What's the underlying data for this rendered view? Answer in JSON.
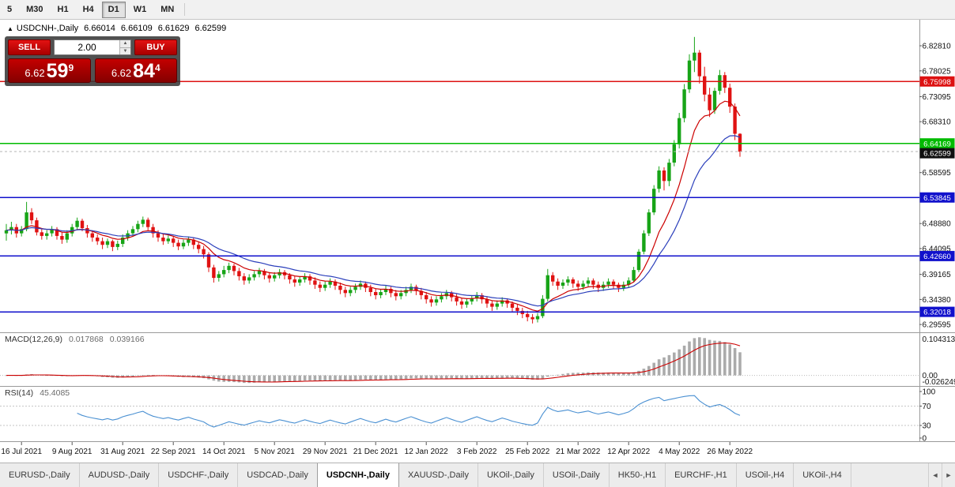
{
  "icons": {
    "symbol_arrow": "▲",
    "volume_up": "▲",
    "volume_down": "▼",
    "tab_scroll_left": "◄",
    "tab_scroll_right": "►"
  },
  "toolbar": {
    "buttons": [
      "5",
      "M30",
      "H1",
      "H4",
      "D1",
      "W1",
      "MN"
    ],
    "active": "D1"
  },
  "chart_header": {
    "symbol": "USDCNH-,Daily",
    "open": "6.66014",
    "high": "6.66109",
    "low": "6.61629",
    "close": "6.62599"
  },
  "trade_panel": {
    "sell_label": "SELL",
    "buy_label": "BUY",
    "volume": "2.00",
    "bid": {
      "prefix": "6.62",
      "big": "59",
      "sup": "9"
    },
    "ask": {
      "prefix": "6.62",
      "big": "84",
      "sup": "4"
    }
  },
  "tabs": {
    "items": [
      "EURUSD-,Daily",
      "AUDUSD-,Daily",
      "USDCHF-,Daily",
      "USDCAD-,Daily",
      "USDCNH-,Daily",
      "XAUUSD-,Daily",
      "UKOil-,Daily",
      "USOil-,Daily",
      "HK50-,H1",
      "EURCHF-,H1",
      "USOil-,H4",
      "UKOil-,H4"
    ],
    "active": "USDCNH-,Daily"
  },
  "chart_data": {
    "type": "candlestick",
    "symbol": "USDCNH-",
    "timeframe": "Daily",
    "price_axis": {
      "p_top": 6.8703,
      "p_bottom": 6.2811
    },
    "y_ticks": [
      "6.82810",
      "6.78025",
      "6.73095",
      "6.68310",
      "6.58595",
      "6.48880",
      "6.44095",
      "6.39165",
      "6.34380",
      "6.29595"
    ],
    "hlines": [
      {
        "price": 6.75998,
        "label": "6.75998",
        "color": "#dd1111"
      },
      {
        "price": 6.64169,
        "label": "6.64169",
        "color": "#00bb00"
      },
      {
        "price": 6.53845,
        "label": "6.53845",
        "color": "#1111cc"
      },
      {
        "price": 6.4266,
        "label": "6.42660",
        "color": "#1111cc"
      },
      {
        "price": 6.32018,
        "label": "6.32018",
        "color": "#1111cc"
      }
    ],
    "current_price": {
      "price": 6.62599,
      "label": "6.62599",
      "color": "#101010"
    },
    "colors": {
      "up": "#17a417",
      "down": "#e01212",
      "ma_fast": "#cc0000",
      "ma_slow": "#2b3fbb",
      "macd_bar": "#ababab",
      "macd_signal": "#cc0000",
      "rsi_line": "#4a90d2"
    },
    "candles": [
      [
        6.47,
        6.488,
        6.456,
        6.476
      ],
      [
        6.476,
        6.492,
        6.468,
        6.482
      ],
      [
        6.482,
        6.488,
        6.462,
        6.47
      ],
      [
        6.47,
        6.484,
        6.464,
        6.478
      ],
      [
        6.478,
        6.53,
        6.474,
        6.51
      ],
      [
        6.51,
        6.518,
        6.488,
        6.495
      ],
      [
        6.495,
        6.5,
        6.466,
        6.472
      ],
      [
        6.472,
        6.48,
        6.458,
        6.465
      ],
      [
        6.465,
        6.476,
        6.458,
        6.47
      ],
      [
        6.47,
        6.484,
        6.464,
        6.478
      ],
      [
        6.478,
        6.482,
        6.458,
        6.465
      ],
      [
        6.465,
        6.472,
        6.45,
        6.458
      ],
      [
        6.458,
        6.476,
        6.452,
        6.47
      ],
      [
        6.47,
        6.488,
        6.464,
        6.482
      ],
      [
        6.482,
        6.5,
        6.476,
        6.494
      ],
      [
        6.494,
        6.498,
        6.474,
        6.48
      ],
      [
        6.48,
        6.486,
        6.462,
        6.47
      ],
      [
        6.47,
        6.476,
        6.454,
        6.462
      ],
      [
        6.462,
        6.468,
        6.448,
        6.455
      ],
      [
        6.455,
        6.462,
        6.44,
        6.448
      ],
      [
        6.448,
        6.46,
        6.442,
        6.455
      ],
      [
        6.455,
        6.458,
        6.436,
        6.444
      ],
      [
        6.444,
        6.456,
        6.438,
        6.45
      ],
      [
        6.45,
        6.468,
        6.444,
        6.462
      ],
      [
        6.462,
        6.476,
        6.456,
        6.47
      ],
      [
        6.47,
        6.484,
        6.464,
        6.478
      ],
      [
        6.478,
        6.494,
        6.472,
        6.488
      ],
      [
        6.488,
        6.502,
        6.482,
        6.496
      ],
      [
        6.496,
        6.5,
        6.476,
        6.482
      ],
      [
        6.482,
        6.488,
        6.462,
        6.47
      ],
      [
        6.47,
        6.476,
        6.454,
        6.462
      ],
      [
        6.462,
        6.468,
        6.448,
        6.455
      ],
      [
        6.455,
        6.466,
        6.45,
        6.46
      ],
      [
        6.46,
        6.464,
        6.444,
        6.452
      ],
      [
        6.452,
        6.458,
        6.438,
        6.445
      ],
      [
        6.445,
        6.458,
        6.44,
        6.452
      ],
      [
        6.452,
        6.464,
        6.446,
        6.458
      ],
      [
        6.458,
        6.462,
        6.44,
        6.448
      ],
      [
        6.448,
        6.454,
        6.432,
        6.44
      ],
      [
        6.44,
        6.446,
        6.422,
        6.43
      ],
      [
        6.43,
        6.434,
        6.396,
        6.405
      ],
      [
        6.405,
        6.41,
        6.376,
        6.385
      ],
      [
        6.385,
        6.398,
        6.378,
        6.392
      ],
      [
        6.392,
        6.408,
        6.386,
        6.4
      ],
      [
        6.4,
        6.414,
        6.394,
        6.408
      ],
      [
        6.408,
        6.412,
        6.39,
        6.398
      ],
      [
        6.398,
        6.404,
        6.38,
        6.388
      ],
      [
        6.388,
        6.394,
        6.372,
        6.38
      ],
      [
        6.38,
        6.392,
        6.374,
        6.386
      ],
      [
        6.386,
        6.398,
        6.38,
        6.392
      ],
      [
        6.392,
        6.404,
        6.386,
        6.398
      ],
      [
        6.398,
        6.402,
        6.382,
        6.39
      ],
      [
        6.39,
        6.396,
        6.376,
        6.384
      ],
      [
        6.384,
        6.396,
        6.378,
        6.39
      ],
      [
        6.39,
        6.402,
        6.384,
        6.396
      ],
      [
        6.396,
        6.4,
        6.382,
        6.39
      ],
      [
        6.39,
        6.394,
        6.374,
        6.382
      ],
      [
        6.382,
        6.388,
        6.368,
        6.376
      ],
      [
        6.376,
        6.388,
        6.37,
        6.382
      ],
      [
        6.382,
        6.394,
        6.376,
        6.388
      ],
      [
        6.388,
        6.392,
        6.372,
        6.38
      ],
      [
        6.38,
        6.386,
        6.364,
        6.372
      ],
      [
        6.372,
        6.378,
        6.358,
        6.366
      ],
      [
        6.366,
        6.378,
        6.36,
        6.372
      ],
      [
        6.372,
        6.384,
        6.366,
        6.378
      ],
      [
        6.378,
        6.382,
        6.362,
        6.37
      ],
      [
        6.37,
        6.376,
        6.354,
        6.362
      ],
      [
        6.362,
        6.368,
        6.348,
        6.356
      ],
      [
        6.356,
        6.368,
        6.35,
        6.362
      ],
      [
        6.362,
        6.374,
        6.356,
        6.368
      ],
      [
        6.368,
        6.38,
        6.362,
        6.374
      ],
      [
        6.374,
        6.378,
        6.358,
        6.366
      ],
      [
        6.366,
        6.372,
        6.35,
        6.358
      ],
      [
        6.358,
        6.364,
        6.344,
        6.352
      ],
      [
        6.352,
        6.364,
        6.346,
        6.358
      ],
      [
        6.358,
        6.37,
        6.352,
        6.364
      ],
      [
        6.364,
        6.368,
        6.348,
        6.356
      ],
      [
        6.356,
        6.362,
        6.342,
        6.35
      ],
      [
        6.35,
        6.362,
        6.344,
        6.356
      ],
      [
        6.356,
        6.368,
        6.35,
        6.362
      ],
      [
        6.362,
        6.374,
        6.356,
        6.368
      ],
      [
        6.368,
        6.372,
        6.352,
        6.36
      ],
      [
        6.36,
        6.366,
        6.344,
        6.352
      ],
      [
        6.352,
        6.358,
        6.336,
        6.344
      ],
      [
        6.344,
        6.35,
        6.33,
        6.338
      ],
      [
        6.338,
        6.35,
        6.332,
        6.344
      ],
      [
        6.344,
        6.356,
        6.338,
        6.35
      ],
      [
        6.35,
        6.362,
        6.344,
        6.356
      ],
      [
        6.356,
        6.36,
        6.34,
        6.348
      ],
      [
        6.348,
        6.354,
        6.332,
        6.34
      ],
      [
        6.34,
        6.346,
        6.326,
        6.334
      ],
      [
        6.334,
        6.346,
        6.328,
        6.34
      ],
      [
        6.34,
        6.352,
        6.334,
        6.346
      ],
      [
        6.346,
        6.358,
        6.34,
        6.352
      ],
      [
        6.352,
        6.356,
        6.336,
        6.344
      ],
      [
        6.344,
        6.35,
        6.328,
        6.336
      ],
      [
        6.336,
        6.342,
        6.322,
        6.33
      ],
      [
        6.33,
        6.342,
        6.324,
        6.336
      ],
      [
        6.336,
        6.348,
        6.33,
        6.342
      ],
      [
        6.342,
        6.346,
        6.328,
        6.336
      ],
      [
        6.336,
        6.34,
        6.32,
        6.328
      ],
      [
        6.328,
        6.334,
        6.314,
        6.322
      ],
      [
        6.322,
        6.328,
        6.308,
        6.316
      ],
      [
        6.316,
        6.322,
        6.302,
        6.31
      ],
      [
        6.31,
        6.316,
        6.298,
        6.306
      ],
      [
        6.306,
        6.318,
        6.3,
        6.312
      ],
      [
        6.312,
        6.352,
        6.308,
        6.345
      ],
      [
        6.345,
        6.402,
        6.34,
        6.39
      ],
      [
        6.39,
        6.396,
        6.37,
        6.378
      ],
      [
        6.378,
        6.384,
        6.362,
        6.37
      ],
      [
        6.37,
        6.382,
        6.364,
        6.376
      ],
      [
        6.376,
        6.388,
        6.37,
        6.382
      ],
      [
        6.382,
        6.386,
        6.366,
        6.374
      ],
      [
        6.374,
        6.38,
        6.36,
        6.368
      ],
      [
        6.368,
        6.38,
        6.362,
        6.374
      ],
      [
        6.374,
        6.386,
        6.368,
        6.38
      ],
      [
        6.38,
        6.384,
        6.364,
        6.372
      ],
      [
        6.372,
        6.378,
        6.358,
        6.366
      ],
      [
        6.366,
        6.378,
        6.36,
        6.372
      ],
      [
        6.372,
        6.384,
        6.366,
        6.378
      ],
      [
        6.378,
        6.382,
        6.364,
        6.372
      ],
      [
        6.372,
        6.376,
        6.358,
        6.366
      ],
      [
        6.366,
        6.378,
        6.36,
        6.372
      ],
      [
        6.372,
        6.386,
        6.366,
        6.38
      ],
      [
        6.38,
        6.406,
        6.376,
        6.4
      ],
      [
        6.4,
        6.44,
        6.396,
        6.435
      ],
      [
        6.435,
        6.476,
        6.43,
        6.47
      ],
      [
        6.47,
        6.516,
        6.465,
        6.51
      ],
      [
        6.51,
        6.562,
        6.505,
        6.555
      ],
      [
        6.555,
        6.598,
        6.548,
        6.59
      ],
      [
        6.59,
        6.596,
        6.552,
        6.57
      ],
      [
        6.57,
        6.612,
        6.56,
        6.605
      ],
      [
        6.605,
        6.648,
        6.598,
        6.64
      ],
      [
        6.64,
        6.7,
        6.632,
        6.69
      ],
      [
        6.69,
        6.755,
        6.682,
        6.745
      ],
      [
        6.745,
        6.812,
        6.738,
        6.8
      ],
      [
        6.8,
        6.845,
        6.778,
        6.815
      ],
      [
        6.815,
        6.82,
        6.756,
        6.77
      ],
      [
        6.77,
        6.788,
        6.722,
        6.735
      ],
      [
        6.735,
        6.748,
        6.692,
        6.705
      ],
      [
        6.705,
        6.748,
        6.698,
        6.742
      ],
      [
        6.742,
        6.782,
        6.735,
        6.772
      ],
      [
        6.772,
        6.778,
        6.738,
        6.748
      ],
      [
        6.748,
        6.756,
        6.7,
        6.712
      ],
      [
        6.712,
        6.718,
        6.648,
        6.66
      ],
      [
        6.66014,
        6.66109,
        6.61629,
        6.62599
      ]
    ],
    "time_labels": [
      {
        "i": 3,
        "t": "16 Jul 2021"
      },
      {
        "i": 13,
        "t": "9 Aug 2021"
      },
      {
        "i": 23,
        "t": "31 Aug 2021"
      },
      {
        "i": 33,
        "t": "22 Sep 2021"
      },
      {
        "i": 43,
        "t": "14 Oct 2021"
      },
      {
        "i": 53,
        "t": "5 Nov 2021"
      },
      {
        "i": 63,
        "t": "29 Nov 2021"
      },
      {
        "i": 73,
        "t": "21 Dec 2021"
      },
      {
        "i": 83,
        "t": "12 Jan 2022"
      },
      {
        "i": 93,
        "t": "3 Feb 2022"
      },
      {
        "i": 103,
        "t": "25 Feb 2022"
      },
      {
        "i": 113,
        "t": "21 Mar 2022"
      },
      {
        "i": 123,
        "t": "12 Apr 2022"
      },
      {
        "i": 133,
        "t": "4 May 2022"
      },
      {
        "i": 143,
        "t": "26 May 2022"
      }
    ],
    "macd": {
      "title": "MACD(12,26,9)",
      "value_main": "0.017868",
      "value_signal": "0.039166",
      "axis": [
        "0.104313",
        "0.00",
        "-0.026249"
      ]
    },
    "rsi": {
      "title": "RSI(14)",
      "value": "45.4085",
      "axis": [
        "100",
        "70",
        "30",
        "0"
      ],
      "levels": [
        70,
        30
      ]
    }
  }
}
